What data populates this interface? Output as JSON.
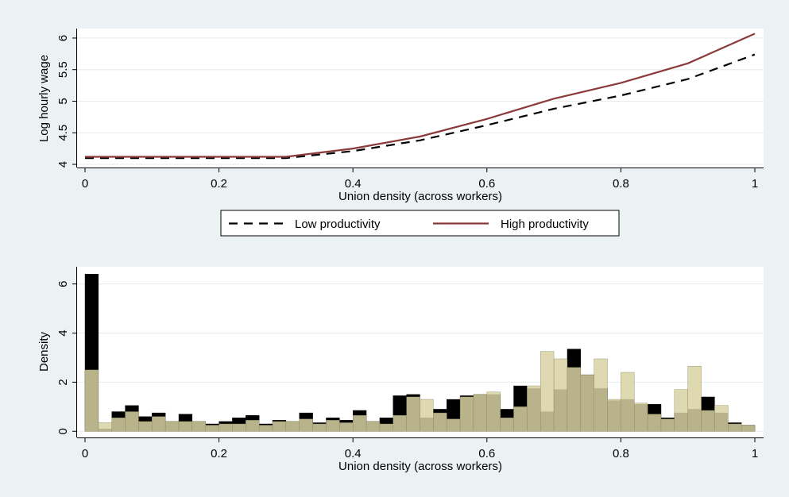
{
  "chart_data": [
    {
      "type": "line",
      "title": "",
      "xlabel": "Union density (across workers)",
      "ylabel": "Log hourly wage",
      "xlim": [
        0,
        1
      ],
      "ylim": [
        3.95,
        6.15
      ],
      "x_ticks": [
        "0",
        "0.2",
        "0.4",
        "0.6",
        "0.8",
        "1"
      ],
      "y_ticks": [
        "4",
        "4.5",
        "5",
        "5.5",
        "6"
      ],
      "grid": true,
      "legend": "below",
      "x": [
        0,
        0.1,
        0.2,
        0.3,
        0.4,
        0.5,
        0.6,
        0.7,
        0.8,
        0.9,
        1.0
      ],
      "series": [
        {
          "name": "Low productivity",
          "color": "#000000",
          "dash": true,
          "values": [
            4.1,
            4.1,
            4.1,
            4.1,
            4.21,
            4.38,
            4.62,
            4.88,
            5.09,
            5.35,
            5.74
          ]
        },
        {
          "name": "High productivity",
          "color": "#8b3a3a",
          "dash": false,
          "values": [
            4.12,
            4.12,
            4.12,
            4.12,
            4.25,
            4.44,
            4.72,
            5.04,
            5.29,
            5.6,
            6.07
          ]
        }
      ]
    },
    {
      "type": "bar",
      "title": "",
      "xlabel": "Union density (across workers)",
      "ylabel": "Density",
      "xlim": [
        0,
        1
      ],
      "ylim": [
        -0.25,
        6.7
      ],
      "x_ticks": [
        "0",
        "0.2",
        "0.4",
        "0.6",
        "0.8",
        "1"
      ],
      "y_ticks": [
        "0",
        "2",
        "4",
        "6"
      ],
      "grid": true,
      "bin_width": 0.02,
      "series": [
        {
          "name": "",
          "color": "#000000",
          "bin_starts": [
            0,
            0.02,
            0.04,
            0.06,
            0.08,
            0.1,
            0.12,
            0.14,
            0.16,
            0.18,
            0.2,
            0.22,
            0.24,
            0.26,
            0.28,
            0.3,
            0.32,
            0.34,
            0.36,
            0.38,
            0.4,
            0.42,
            0.44,
            0.46,
            0.48,
            0.5,
            0.52,
            0.54,
            0.56,
            0.58,
            0.6,
            0.62,
            0.64,
            0.66,
            0.68,
            0.7,
            0.72,
            0.74,
            0.76,
            0.78,
            0.8,
            0.82,
            0.84,
            0.86,
            0.88,
            0.9,
            0.92,
            0.94,
            0.96,
            0.98
          ],
          "values": [
            6.4,
            0.1,
            0.8,
            1.05,
            0.6,
            0.75,
            0.4,
            0.7,
            0.4,
            0.3,
            0.4,
            0.55,
            0.65,
            0.3,
            0.45,
            0.4,
            0.75,
            0.35,
            0.55,
            0.45,
            0.85,
            0.4,
            0.55,
            1.45,
            1.5,
            0.55,
            0.9,
            1.3,
            1.45,
            1.5,
            1.5,
            0.9,
            1.85,
            1.75,
            0.8,
            1.7,
            3.35,
            2.3,
            1.75,
            1.25,
            1.3,
            1.1,
            1.1,
            0.55,
            0.75,
            0.9,
            1.4,
            0.75,
            0.35,
            0.25
          ]
        },
        {
          "name": "",
          "color": "#d8d2a2",
          "bin_starts": [
            0,
            0.02,
            0.04,
            0.06,
            0.08,
            0.1,
            0.12,
            0.14,
            0.16,
            0.18,
            0.2,
            0.22,
            0.24,
            0.26,
            0.28,
            0.3,
            0.32,
            0.34,
            0.36,
            0.38,
            0.4,
            0.42,
            0.44,
            0.46,
            0.48,
            0.5,
            0.52,
            0.54,
            0.56,
            0.58,
            0.6,
            0.62,
            0.64,
            0.66,
            0.68,
            0.7,
            0.72,
            0.74,
            0.76,
            0.78,
            0.8,
            0.82,
            0.84,
            0.86,
            0.88,
            0.9,
            0.92,
            0.94,
            0.96,
            0.98
          ],
          "values": [
            2.5,
            0.35,
            0.55,
            0.8,
            0.4,
            0.6,
            0.4,
            0.4,
            0.4,
            0.25,
            0.3,
            0.3,
            0.45,
            0.25,
            0.4,
            0.4,
            0.5,
            0.3,
            0.45,
            0.35,
            0.65,
            0.4,
            0.3,
            0.65,
            1.4,
            1.3,
            0.75,
            0.5,
            1.4,
            1.5,
            1.6,
            0.55,
            1.0,
            1.85,
            3.25,
            2.95,
            2.6,
            2.3,
            2.95,
            1.3,
            2.4,
            1.15,
            0.7,
            0.5,
            1.7,
            2.65,
            0.85,
            1.05,
            0.3,
            0.25
          ]
        }
      ]
    }
  ]
}
